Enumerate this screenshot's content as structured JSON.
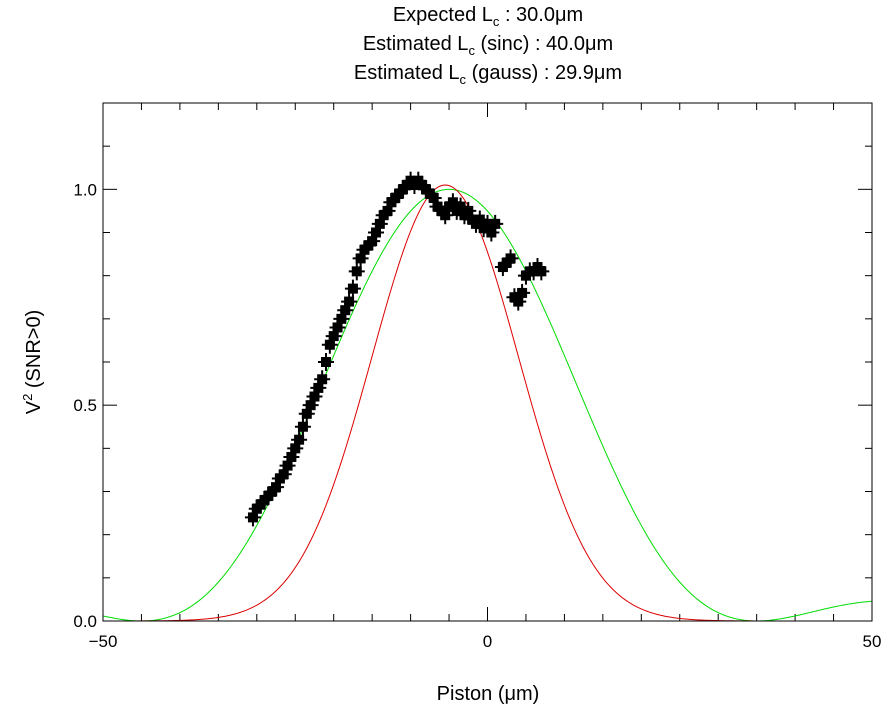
{
  "chart_data": {
    "type": "scatter",
    "title_lines": [
      {
        "pre": "Expected L",
        "sub": "c",
        "post": " : 30.0μm"
      },
      {
        "pre": "Estimated L",
        "sub": "c",
        "post": " (sinc) : 40.0μm"
      },
      {
        "pre": "Estimated L",
        "sub": "c",
        "post": " (gauss) : 29.9μm"
      }
    ],
    "xlabel": "Piston (μm)",
    "ylabel": {
      "pre": "V",
      "sup": "2",
      "post": " (SNR>0)"
    },
    "xlim": [
      -50,
      50
    ],
    "ylim": [
      0,
      1.2
    ],
    "xticks": [
      -50,
      0,
      50
    ],
    "xtick_labels": [
      "−50",
      "0",
      "50"
    ],
    "yticks": [
      0,
      0.5,
      1
    ],
    "ytick_labels": [
      "0.0",
      "0.5",
      "1.0"
    ],
    "grid": false,
    "legend": "none",
    "series": [
      {
        "type": "scatter",
        "marker": "plus",
        "color": "#000000",
        "x": [
          -30.5,
          -30.0,
          -29.5,
          -29.0,
          -28.5,
          -28.0,
          -27.5,
          -27.0,
          -26.5,
          -26.0,
          -25.5,
          -25.0,
          -24.5,
          -24.0,
          -23.5,
          -23.0,
          -22.5,
          -22.0,
          -21.5,
          -21.0,
          -20.5,
          -20.0,
          -19.5,
          -19.0,
          -18.5,
          -18.0,
          -17.5,
          -17.0,
          -16.5,
          -16.0,
          -15.5,
          -15.0,
          -14.5,
          -14.0,
          -13.5,
          -13.0,
          -12.5,
          -12.0,
          -11.5,
          -11.0,
          -10.5,
          -10.0,
          -9.5,
          -9.0,
          -8.5,
          -8.0,
          -7.5,
          -7.0,
          -6.5,
          -6.0,
          -5.5,
          -5.0,
          -4.5,
          -4.0,
          -3.5,
          -3.0,
          -2.5,
          -2.0,
          -1.5,
          -1.0,
          -0.5,
          0.0,
          0.5,
          1.0,
          2.0,
          2.5,
          3.0,
          3.5,
          4.0,
          4.5,
          5.0,
          5.5,
          6.0,
          6.5,
          7.0
        ],
        "y": [
          0.24,
          0.26,
          0.27,
          0.28,
          0.29,
          0.3,
          0.31,
          0.33,
          0.34,
          0.36,
          0.38,
          0.4,
          0.42,
          0.45,
          0.48,
          0.5,
          0.52,
          0.54,
          0.56,
          0.6,
          0.64,
          0.66,
          0.68,
          0.7,
          0.72,
          0.74,
          0.77,
          0.81,
          0.84,
          0.86,
          0.87,
          0.88,
          0.9,
          0.92,
          0.94,
          0.95,
          0.97,
          0.98,
          0.99,
          1.0,
          1.01,
          1.02,
          1.01,
          1.02,
          1.01,
          1.0,
          0.99,
          0.98,
          0.96,
          0.95,
          0.94,
          0.96,
          0.97,
          0.95,
          0.96,
          0.94,
          0.95,
          0.93,
          0.92,
          0.93,
          0.91,
          0.92,
          0.9,
          0.92,
          0.82,
          0.83,
          0.84,
          0.75,
          0.74,
          0.76,
          0.8,
          0.81,
          0.81,
          0.82,
          0.81
        ]
      },
      {
        "type": "line",
        "shape": "sinc",
        "color": "#00dd00",
        "center": -5.0,
        "width_um": 40.0,
        "amplitude": 1.0
      },
      {
        "type": "line",
        "shape": "gauss",
        "color": "#dd0000",
        "center": -5.5,
        "width_um": 29.9,
        "amplitude": 1.01
      }
    ]
  }
}
